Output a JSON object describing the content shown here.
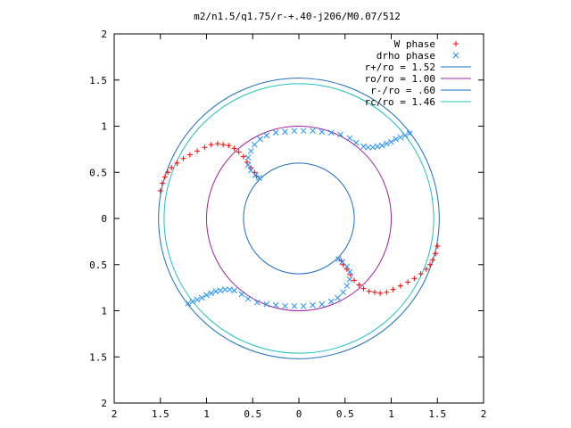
{
  "chart_data": {
    "type": "scatter",
    "title": "m2/n1.5/q1.75/r-+.40-j206/M0.07/512",
    "xlabel": "",
    "ylabel": "",
    "xlim": [
      -2,
      2
    ],
    "ylim": [
      -2,
      2
    ],
    "x_ticks": [
      -2,
      -1.5,
      -1,
      -0.5,
      0,
      0.5,
      1,
      1.5,
      2
    ],
    "y_ticks": [
      -2,
      -1.5,
      -1,
      -0.5,
      0,
      0.5,
      1,
      1.5,
      2
    ],
    "x_tick_labels": [
      "2",
      "1.5",
      "1",
      "0.5",
      "0",
      "0.5",
      "1",
      "1.5",
      "2"
    ],
    "y_tick_labels": [
      "2",
      "1.5",
      "1",
      "0.5",
      "0",
      "0.5",
      "1",
      "1.5",
      "2"
    ],
    "grid": false,
    "legend_position": "top-right",
    "legend": [
      {
        "label": "W phase",
        "kind": "points",
        "symbol": "plus",
        "color": "#ff0000"
      },
      {
        "label": "drho phase",
        "kind": "points",
        "symbol": "cross",
        "color": "#1e90ff"
      },
      {
        "label": "r+/ro = 1.52",
        "kind": "circle",
        "radius": 1.52,
        "color": "#1c6fbf"
      },
      {
        "label": "ro/ro = 1.00",
        "kind": "circle",
        "radius": 1.0,
        "color": "#a020a0"
      },
      {
        "label": "r-/ro = .60",
        "kind": "circle",
        "radius": 0.6,
        "color": "#1c6fbf"
      },
      {
        "label": "rc/ro = 1.46",
        "kind": "circle",
        "radius": 1.46,
        "color": "#20c0c0"
      }
    ],
    "series": [
      {
        "name": "W phase",
        "color": "#ff0000",
        "marker": "plus",
        "x": [
          -1.5,
          -1.48,
          -1.45,
          -1.42,
          -1.38,
          -1.32,
          -1.25,
          -1.18,
          -1.1,
          -1.02,
          -0.95,
          -0.88,
          -0.82,
          -0.76,
          -0.7,
          -0.65,
          -0.6,
          -0.56,
          -0.52,
          -0.48,
          -0.46,
          1.5,
          1.48,
          1.45,
          1.42,
          1.38,
          1.32,
          1.25,
          1.18,
          1.1,
          1.02,
          0.95,
          0.88,
          0.82,
          0.76,
          0.7,
          0.65,
          0.6,
          0.56,
          0.52,
          0.48,
          0.46
        ],
        "y": [
          0.3,
          0.38,
          0.45,
          0.5,
          0.55,
          0.6,
          0.65,
          0.69,
          0.73,
          0.77,
          0.8,
          0.81,
          0.8,
          0.79,
          0.76,
          0.72,
          0.67,
          0.61,
          0.55,
          0.5,
          0.46,
          -0.3,
          -0.38,
          -0.45,
          -0.5,
          -0.55,
          -0.6,
          -0.65,
          -0.69,
          -0.73,
          -0.77,
          -0.8,
          -0.81,
          -0.8,
          -0.79,
          -0.76,
          -0.72,
          -0.67,
          -0.61,
          -0.55,
          -0.5,
          -0.46
        ]
      },
      {
        "name": "drho phase",
        "color": "#1e90ff",
        "marker": "cross",
        "x": [
          1.2,
          1.15,
          1.1,
          1.05,
          1.0,
          0.95,
          0.9,
          0.85,
          0.8,
          0.75,
          0.7,
          0.62,
          0.55,
          0.45,
          0.35,
          0.25,
          0.15,
          0.05,
          -0.05,
          -0.15,
          -0.25,
          -0.35,
          -0.42,
          -0.48,
          -0.52,
          -0.55,
          -0.55,
          -0.52,
          -0.47,
          -0.43,
          -1.2,
          -1.15,
          -1.1,
          -1.05,
          -1.0,
          -0.95,
          -0.9,
          -0.85,
          -0.8,
          -0.75,
          -0.7,
          -0.62,
          -0.55,
          -0.45,
          -0.35,
          -0.25,
          -0.15,
          -0.05,
          0.05,
          0.15,
          0.25,
          0.35,
          0.42,
          0.48,
          0.52,
          0.55,
          0.55,
          0.52,
          0.47,
          0.43
        ],
        "y": [
          0.92,
          0.9,
          0.88,
          0.86,
          0.83,
          0.81,
          0.79,
          0.78,
          0.77,
          0.77,
          0.78,
          0.82,
          0.87,
          0.91,
          0.93,
          0.94,
          0.95,
          0.95,
          0.95,
          0.94,
          0.93,
          0.9,
          0.86,
          0.8,
          0.73,
          0.66,
          0.58,
          0.52,
          0.47,
          0.44,
          -0.92,
          -0.9,
          -0.88,
          -0.86,
          -0.83,
          -0.81,
          -0.79,
          -0.78,
          -0.77,
          -0.77,
          -0.78,
          -0.82,
          -0.87,
          -0.91,
          -0.93,
          -0.94,
          -0.95,
          -0.95,
          -0.95,
          -0.94,
          -0.93,
          -0.9,
          -0.86,
          -0.8,
          -0.73,
          -0.66,
          -0.58,
          -0.52,
          -0.47,
          -0.44
        ]
      }
    ]
  }
}
